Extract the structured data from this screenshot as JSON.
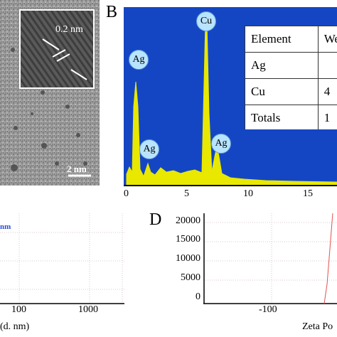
{
  "panelA": {
    "inset_scale_label": "0.2 nm",
    "scale_label": "2 nm"
  },
  "panelB": {
    "letter": "B",
    "peaks": [
      {
        "label": "Ag"
      },
      {
        "label": "Cu"
      },
      {
        "label": "Ag"
      },
      {
        "label": "Ag"
      }
    ],
    "table": {
      "header": [
        "Element",
        "Wei"
      ],
      "rows": [
        [
          "Ag",
          ""
        ],
        [
          "Cu",
          "4"
        ],
        [
          "Totals",
          "1"
        ]
      ]
    },
    "x_ticks": [
      "0",
      "5",
      "10",
      "15"
    ],
    "colors": {
      "background": "#1446c4",
      "spectrum": "#e8e800"
    }
  },
  "panelC": {
    "unit_fragment": "nm",
    "x_ticks": [
      "100",
      "1000"
    ],
    "xlabel_fragment": "(d. nm)"
  },
  "panelD": {
    "letter": "D",
    "y_ticks": [
      "20000",
      "15000",
      "10000",
      "5000",
      "0"
    ],
    "x_ticks": [
      "-100"
    ],
    "xlabel_fragment": "Zeta Po"
  }
}
